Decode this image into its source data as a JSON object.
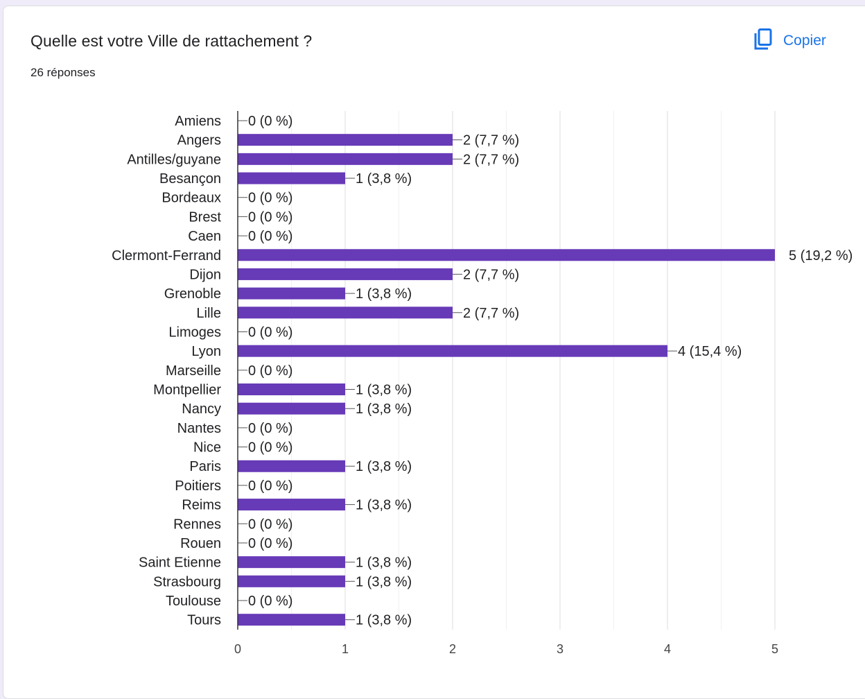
{
  "header": {
    "title": "Quelle est votre Ville de rattachement ?",
    "response_count": "26 réponses",
    "copy_label": "Copier",
    "copy_icon": "copy-icon"
  },
  "colors": {
    "bar": "#673ab7",
    "accent": "#1a73e8",
    "grid": "#e8e8e8",
    "text": "#202124"
  },
  "chart_data": {
    "type": "bar",
    "orientation": "horizontal",
    "categories": [
      "Amiens",
      "Angers",
      "Antilles/guyane",
      "Besançon",
      "Bordeaux",
      "Brest",
      "Caen",
      "Clermont-Ferrand",
      "Dijon",
      "Grenoble",
      "Lille",
      "Limoges",
      "Lyon",
      "Marseille",
      "Montpellier",
      "Nancy",
      "Nantes",
      "Nice",
      "Paris",
      "Poitiers",
      "Reims",
      "Rennes",
      "Rouen",
      "Saint Etienne",
      "Strasbourg",
      "Toulouse",
      "Tours"
    ],
    "values": [
      0,
      2,
      2,
      1,
      0,
      0,
      0,
      5,
      2,
      1,
      2,
      0,
      4,
      0,
      1,
      1,
      0,
      0,
      1,
      0,
      1,
      0,
      0,
      1,
      1,
      0,
      1
    ],
    "data_labels": [
      "0 (0 %)",
      "2 (7,7 %)",
      "2 (7,7 %)",
      "1 (3,8 %)",
      "0 (0 %)",
      "0 (0 %)",
      "0 (0 %)",
      "5 (19,2 %)",
      "2 (7,7 %)",
      "1 (3,8 %)",
      "2 (7,7 %)",
      "0 (0 %)",
      "4 (15,4 %)",
      "0 (0 %)",
      "1 (3,8 %)",
      "1 (3,8 %)",
      "0 (0 %)",
      "0 (0 %)",
      "1 (3,8 %)",
      "0 (0 %)",
      "1 (3,8 %)",
      "0 (0 %)",
      "0 (0 %)",
      "1 (3,8 %)",
      "1 (3,8 %)",
      "0 (0 %)",
      "1 (3,8 %)"
    ],
    "xlim": [
      0,
      5
    ],
    "xticks": [
      0,
      1,
      2,
      3,
      4,
      5
    ],
    "grid": true
  }
}
